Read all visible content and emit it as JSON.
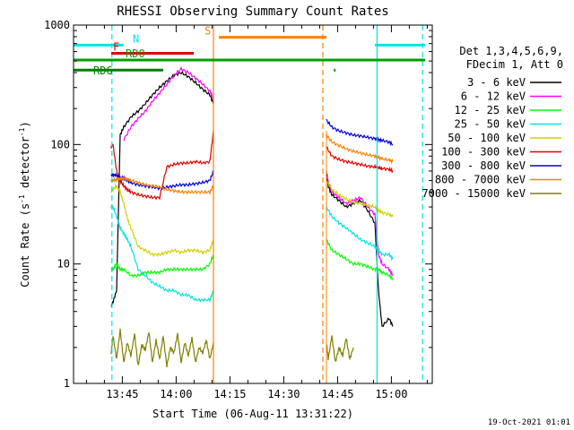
{
  "chart_data": {
    "type": "line",
    "title": "RHESSI Observing Summary Count Rates",
    "xlabel": "Start Time (06-Aug-11 13:31:22)",
    "ylabel": "Count Rate (s",
    "ylabel_sup1": "-1",
    "ylabel_mid": " detector",
    "ylabel_sup2": "-1",
    "ylabel_end": ")",
    "y_scale": "log",
    "ylim": [
      1,
      1000
    ],
    "xlim_minutes": [
      0,
      100
    ],
    "x_ticks": [
      {
        "m": 13.6,
        "label": "13:45"
      },
      {
        "m": 28.6,
        "label": "14:00"
      },
      {
        "m": 43.6,
        "label": "14:15"
      },
      {
        "m": 58.6,
        "label": "14:30"
      },
      {
        "m": 73.6,
        "label": "14:45"
      },
      {
        "m": 88.6,
        "label": "15:00"
      }
    ],
    "y_ticks": [
      {
        "v": 1,
        "label": "1"
      },
      {
        "v": 10,
        "label": "10"
      },
      {
        "v": 100,
        "label": "100"
      },
      {
        "v": 1000,
        "label": "1000"
      }
    ],
    "legend_header": [
      "Det 1,3,4,5,6,9,",
      "FDecim 1, Att 0"
    ],
    "legend_position": "right",
    "footer_date": "19-Oct-2021 01:01",
    "flags": [
      {
        "label": "N",
        "color": "#00e5e5",
        "y": 680,
        "x0": 0,
        "x1": 14,
        "label_m": 16.5
      },
      {
        "label": "N",
        "color": "#00e5e5",
        "y": 680,
        "x0": 84,
        "x1": 98,
        "label_m": null
      },
      {
        "label": "F",
        "color": "#e00000",
        "y": 580,
        "x0": 10.5,
        "x1": 33.5,
        "label_m": 11
      },
      {
        "label": "RDO",
        "color": "#00a000",
        "y": 510,
        "x0": 0,
        "x1": 98,
        "label_m": 14.5
      },
      {
        "label": "RD6",
        "color": "#008000",
        "y": 420,
        "x0": 0,
        "x1": 25,
        "label_m": 5.5
      },
      {
        "label": "S",
        "color": "#ff8000",
        "y": 790,
        "x0": 40.5,
        "x1": 70.5,
        "label_m": 36.5
      }
    ],
    "vlines": [
      {
        "m": 10.7,
        "color": "#00e5e5",
        "dash": true
      },
      {
        "m": 39.0,
        "color": "#ff8000",
        "dash": false
      },
      {
        "m": 69.5,
        "color": "#ff8000",
        "dash": true
      },
      {
        "m": 84.6,
        "color": "#00e5e5",
        "dash": false
      },
      {
        "m": 97.3,
        "color": "#00e5e5",
        "dash": true
      }
    ],
    "series": [
      {
        "name": "3 - 6 keV",
        "color": "#000000",
        "seg1": {
          "x": [
            10.5,
            11,
            12,
            13,
            14,
            16,
            18,
            20,
            22,
            24,
            26,
            28,
            30,
            32,
            34,
            36,
            38,
            39
          ],
          "y": [
            4.5,
            4.8,
            6,
            120,
            140,
            170,
            190,
            220,
            260,
            300,
            340,
            380,
            400,
            370,
            330,
            290,
            260,
            220
          ]
        },
        "seg2": {
          "x": [
            70.5,
            71,
            72,
            74,
            76,
            78,
            80,
            82,
            84,
            85,
            86,
            88,
            89
          ],
          "y": [
            60,
            45,
            38,
            34,
            30,
            32,
            34,
            28,
            22,
            6,
            3,
            3.5,
            3
          ]
        }
      },
      {
        "name": "6 - 12 keV",
        "color": "#ff00ff",
        "seg1": {
          "x": [
            14,
            16,
            18,
            20,
            22,
            24,
            26,
            28,
            30,
            32,
            34,
            36,
            38,
            39
          ],
          "y": [
            110,
            140,
            165,
            190,
            230,
            270,
            320,
            380,
            430,
            400,
            360,
            320,
            280,
            240
          ]
        },
        "seg2": {
          "x": [
            70.5,
            72,
            74,
            76,
            78,
            80,
            82,
            84,
            85,
            86,
            88,
            89
          ],
          "y": [
            55,
            40,
            36,
            32,
            34,
            36,
            30,
            26,
            12,
            10,
            9,
            8
          ]
        }
      },
      {
        "name": "12 - 25 keV",
        "color": "#00ff00",
        "seg1": {
          "x": [
            10.5,
            11,
            12,
            13,
            14,
            16,
            18,
            20,
            22,
            24,
            26,
            28,
            30,
            32,
            34,
            36,
            38,
            39
          ],
          "y": [
            9,
            9,
            10,
            9,
            9,
            8,
            8,
            8.5,
            8.5,
            8.5,
            9,
            9,
            9,
            9,
            9,
            9,
            10,
            12
          ]
        },
        "seg2": {
          "x": [
            70.5,
            72,
            74,
            76,
            78,
            80,
            82,
            84,
            85,
            86,
            88,
            89
          ],
          "y": [
            16,
            13,
            12,
            11,
            10,
            10,
            9.5,
            9,
            9,
            8.5,
            8,
            7.5
          ]
        }
      },
      {
        "name": "25 - 50 keV",
        "color": "#00e5e5",
        "seg1": {
          "x": [
            10.5,
            11,
            12,
            13,
            14,
            15,
            16,
            18,
            20,
            22,
            24,
            26,
            28,
            30,
            32,
            34,
            36,
            38,
            39
          ],
          "y": [
            30,
            30,
            25,
            20,
            18,
            16,
            14,
            9,
            8,
            7,
            6.5,
            6,
            6,
            5.5,
            5.5,
            5,
            5,
            5,
            6
          ]
        },
        "seg2": {
          "x": [
            70.5,
            72,
            74,
            76,
            78,
            80,
            82,
            84,
            85,
            86,
            88,
            89
          ],
          "y": [
            30,
            25,
            22,
            20,
            18,
            16,
            15,
            14,
            13,
            12,
            12,
            11
          ]
        }
      },
      {
        "name": "50 - 100 keV",
        "color": "#d0d000",
        "seg1": {
          "x": [
            10.5,
            11,
            12,
            13,
            14,
            15,
            16,
            18,
            20,
            22,
            24,
            26,
            28,
            30,
            32,
            34,
            36,
            38,
            39
          ],
          "y": [
            40,
            42,
            45,
            40,
            32,
            24,
            20,
            14,
            13,
            12,
            12,
            12.5,
            13,
            12.5,
            13,
            13,
            12.5,
            13,
            16
          ]
        },
        "seg2": {
          "x": [
            70.5,
            72,
            74,
            76,
            78,
            80,
            82,
            84,
            85,
            86,
            88,
            89
          ],
          "y": [
            50,
            42,
            38,
            35,
            33,
            32,
            31,
            30,
            28,
            27,
            26,
            25
          ]
        }
      },
      {
        "name": "100 - 300 keV",
        "color": "#e00000",
        "seg1": {
          "x": [
            10.5,
            11,
            12,
            13,
            14,
            15,
            16,
            18,
            20,
            22,
            24,
            26,
            28,
            30,
            32,
            34,
            36,
            38,
            39
          ],
          "y": [
            95,
            100,
            60,
            50,
            45,
            42,
            40,
            38,
            37,
            36,
            36,
            65,
            68,
            70,
            70,
            72,
            70,
            72,
            130
          ]
        },
        "seg2": {
          "x": [
            70.5,
            72,
            74,
            76,
            78,
            80,
            82,
            84,
            85,
            86,
            88,
            89
          ],
          "y": [
            95,
            80,
            75,
            72,
            70,
            68,
            66,
            65,
            64,
            63,
            62,
            60
          ]
        }
      },
      {
        "name": "300 - 800 keV",
        "color": "#0000e0",
        "seg1": {
          "x": [
            10.5,
            11,
            12,
            13,
            14,
            15,
            16,
            18,
            20,
            22,
            24,
            26,
            28,
            30,
            32,
            34,
            36,
            38,
            39
          ],
          "y": [
            55,
            56,
            55,
            53,
            52,
            50,
            48,
            46,
            45,
            44,
            43,
            44,
            45,
            46,
            46,
            47,
            48,
            50,
            60
          ]
        },
        "seg2": {
          "x": [
            70.5,
            72,
            74,
            76,
            78,
            80,
            82,
            84,
            85,
            86,
            88,
            89
          ],
          "y": [
            160,
            140,
            130,
            125,
            120,
            118,
            115,
            112,
            110,
            108,
            105,
            100
          ]
        }
      },
      {
        "name": "800 - 7000 keV",
        "color": "#ff8000",
        "seg1": {
          "x": [
            10.5,
            11,
            12,
            13,
            14,
            15,
            16,
            18,
            20,
            22,
            24,
            26,
            28,
            30,
            32,
            34,
            36,
            38,
            39
          ],
          "y": [
            50,
            50,
            51,
            52,
            52,
            51,
            50,
            48,
            46,
            45,
            44,
            42,
            41,
            40,
            40,
            40,
            40,
            40,
            45
          ]
        },
        "seg2": {
          "x": [
            70.5,
            72,
            74,
            76,
            78,
            80,
            82,
            84,
            85,
            86,
            88,
            89
          ],
          "y": [
            120,
            105,
            98,
            92,
            88,
            85,
            82,
            80,
            78,
            76,
            74,
            72
          ]
        }
      },
      {
        "name": "7000 - 15000 keV",
        "color": "#808000",
        "seg1": {
          "x": [
            10.5,
            11,
            12,
            13,
            14,
            15,
            16,
            17,
            18,
            19,
            20,
            21,
            22,
            23,
            24,
            25,
            26,
            27,
            28,
            29,
            30,
            31,
            32,
            33,
            34,
            35,
            36,
            37,
            38,
            39
          ],
          "y": [
            1.8,
            2.5,
            1.6,
            2.8,
            1.5,
            2.2,
            1.7,
            2.6,
            1.4,
            2.1,
            1.9,
            2.7,
            1.5,
            2.3,
            1.6,
            2.5,
            1.4,
            2.0,
            1.8,
            2.6,
            1.5,
            2.2,
            1.7,
            2.4,
            1.5,
            2.0,
            1.8,
            2.3,
            1.6,
            2.2
          ]
        },
        "seg2": {
          "x": [
            70.5,
            71,
            72,
            73,
            74,
            75,
            76,
            77,
            78
          ],
          "y": [
            2.2,
            1.6,
            2.5,
            1.5,
            2.0,
            1.7,
            2.4,
            1.6,
            2.0
          ]
        }
      }
    ]
  }
}
